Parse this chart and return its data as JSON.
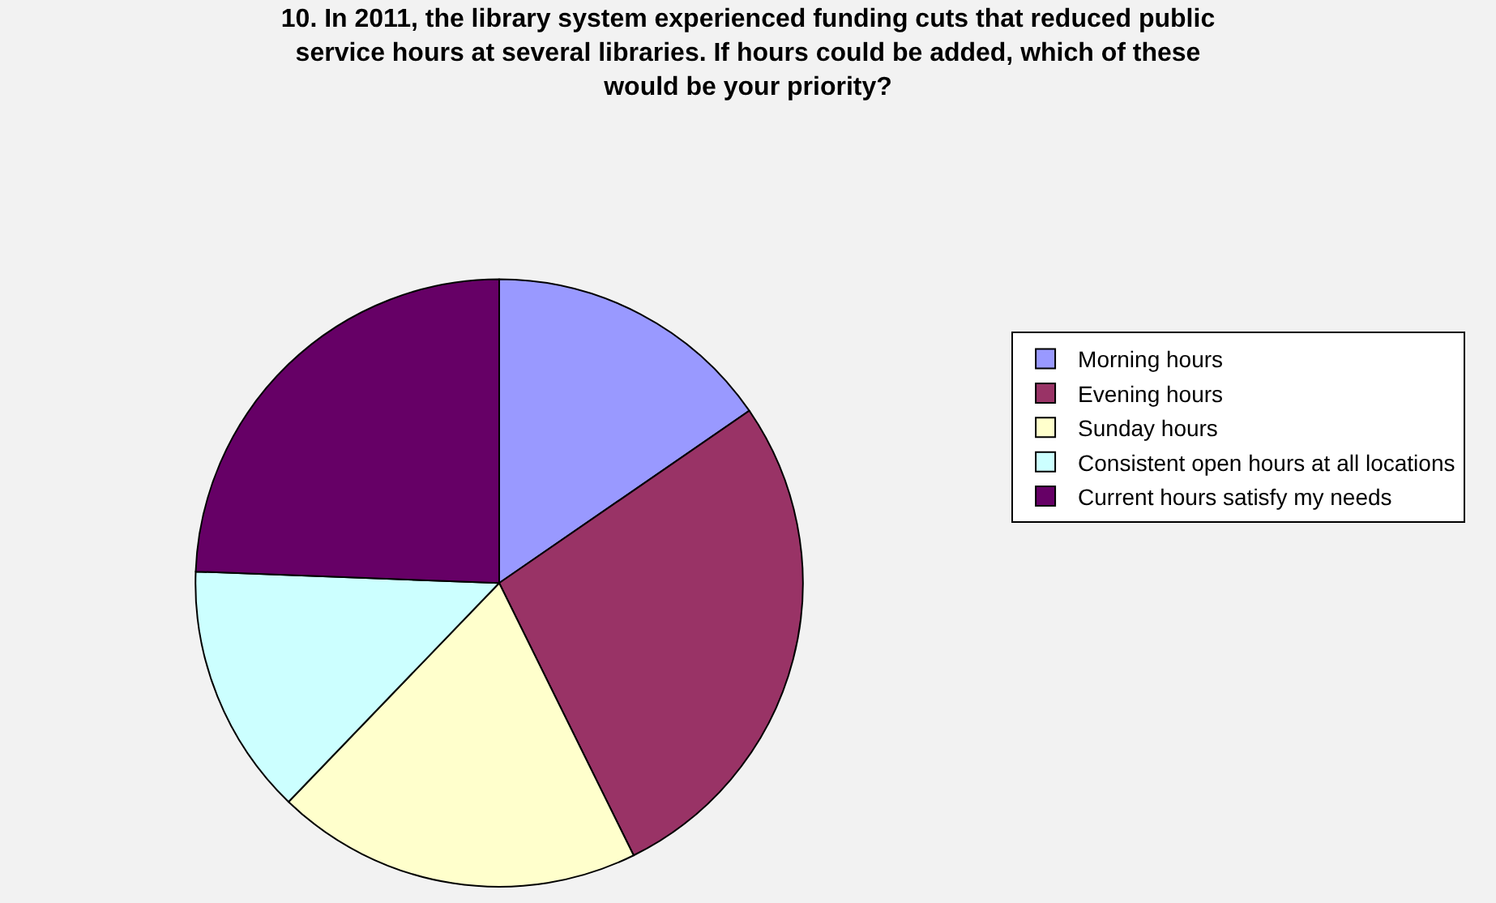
{
  "chart_data": {
    "type": "pie",
    "title": "10. In 2011, the library system experienced funding cuts that reduced public service hours at several libraries. If hours could be added, which of these would be your priority?",
    "categories": [
      "Morning hours",
      "Evening hours",
      "Sunday hours",
      "Consistent open hours at all locations",
      "Current hours satisfy my needs"
    ],
    "values": [
      15.4,
      27.3,
      19.5,
      13.4,
      24.4
    ],
    "colors": [
      "#9999ff",
      "#993366",
      "#ffffcc",
      "#ccffff",
      "#660066"
    ],
    "legend": "right"
  }
}
